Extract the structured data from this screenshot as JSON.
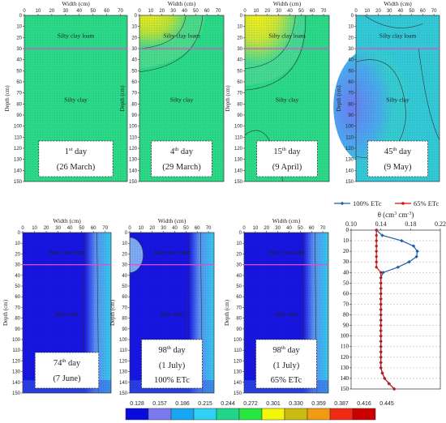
{
  "colors": {
    "scale": [
      "#0a0adc",
      "#7a7af0",
      "#19a6f0",
      "#2fd2f2",
      "#1fd68a",
      "#28e640",
      "#f5f50a",
      "#c9bb10",
      "#f29a12",
      "#ee2a12",
      "#cc0000"
    ],
    "series_100": "#1f5fa8",
    "series_65": "#c81414",
    "layer_line": "#e64bd2"
  },
  "labels": {
    "width_axis": "Width (cm)",
    "depth_axis": "Depth (cm)",
    "top_layer": "Silty clay loam",
    "bottom_layer": "Silty clay",
    "x_ticks": [
      "0",
      "10",
      "20",
      "30",
      "40",
      "50",
      "60",
      "70"
    ],
    "y_ticks": [
      "0",
      "10",
      "20",
      "30",
      "40",
      "50",
      "60",
      "70",
      "80",
      "90",
      "100",
      "110",
      "120",
      "130",
      "140",
      "150"
    ]
  },
  "panels": [
    {
      "id": "p1",
      "line1_num": "1",
      "line1_sup": "st",
      "line1_rest": " day",
      "line2": "(26 March)",
      "line3": ""
    },
    {
      "id": "p2",
      "line1_num": "4",
      "line1_sup": "th",
      "line1_rest": " day",
      "line2": "(29 March)",
      "line3": ""
    },
    {
      "id": "p3",
      "line1_num": "15",
      "line1_sup": "th",
      "line1_rest": " day",
      "line2": "(9 April)",
      "line3": ""
    },
    {
      "id": "p4",
      "line1_num": "45",
      "line1_sup": "th",
      "line1_rest": " day",
      "line2": "(9 May)",
      "line3": ""
    },
    {
      "id": "p5",
      "line1_num": "74",
      "line1_sup": "th",
      "line1_rest": " day",
      "line2": "(7 June)",
      "line3": ""
    },
    {
      "id": "p6",
      "line1_num": "98",
      "line1_sup": "th",
      "line1_rest": " day",
      "line2": "(1 July)",
      "line3": "100% ETc"
    },
    {
      "id": "p7",
      "line1_num": "98",
      "line1_sup": "th",
      "line1_rest": " day",
      "line2": "(1 July)",
      "line3": "65% ETc"
    }
  ],
  "colorbar": {
    "ticks": [
      "0.128",
      "0.157",
      "0.186",
      "0.215",
      "0.244",
      "0.272",
      "0.301",
      "0.330",
      "0.359",
      "0.387",
      "0.416",
      "0.445"
    ]
  },
  "chart_data": {
    "type": "line",
    "xlabel_main": "θ (cm",
    "xlabel_sup1": "3",
    "xlabel_mid": " cm",
    "xlabel_sup2": "-3",
    "xlabel_end": ")",
    "x_ticks": [
      "0.10",
      "0.14",
      "0.18",
      "0.22"
    ],
    "xlim": [
      0.1,
      0.22
    ],
    "ylim": [
      0,
      150
    ],
    "y_ticks": [
      "0",
      "10",
      "20",
      "30",
      "40",
      "50",
      "60",
      "70",
      "80",
      "90",
      "100",
      "110",
      "120",
      "130",
      "140",
      "150"
    ],
    "grid": "horizontal dashed",
    "legend": "top",
    "series": [
      {
        "name": "100% ETc",
        "points": [
          [
            0.134,
            0
          ],
          [
            0.142,
            5
          ],
          [
            0.168,
            10
          ],
          [
            0.184,
            15
          ],
          [
            0.189,
            20
          ],
          [
            0.188,
            25
          ],
          [
            0.178,
            30
          ],
          [
            0.163,
            35
          ],
          [
            0.143,
            40
          ],
          [
            0.14,
            45
          ],
          [
            0.14,
            50
          ],
          [
            0.14,
            55
          ],
          [
            0.14,
            60
          ],
          [
            0.14,
            65
          ],
          [
            0.14,
            70
          ],
          [
            0.14,
            75
          ],
          [
            0.14,
            80
          ],
          [
            0.14,
            85
          ],
          [
            0.14,
            90
          ],
          [
            0.14,
            95
          ],
          [
            0.14,
            100
          ],
          [
            0.14,
            105
          ],
          [
            0.14,
            110
          ],
          [
            0.14,
            115
          ],
          [
            0.14,
            120
          ],
          [
            0.14,
            125
          ],
          [
            0.14,
            130
          ],
          [
            0.142,
            135
          ],
          [
            0.145,
            140
          ],
          [
            0.151,
            145
          ],
          [
            0.158,
            150
          ]
        ]
      },
      {
        "name": "65% ETc",
        "points": [
          [
            0.134,
            0
          ],
          [
            0.134,
            5
          ],
          [
            0.134,
            10
          ],
          [
            0.134,
            15
          ],
          [
            0.134,
            20
          ],
          [
            0.134,
            25
          ],
          [
            0.134,
            30
          ],
          [
            0.134,
            35
          ],
          [
            0.14,
            40
          ],
          [
            0.14,
            45
          ],
          [
            0.14,
            50
          ],
          [
            0.14,
            55
          ],
          [
            0.14,
            60
          ],
          [
            0.14,
            65
          ],
          [
            0.14,
            70
          ],
          [
            0.14,
            75
          ],
          [
            0.14,
            80
          ],
          [
            0.14,
            85
          ],
          [
            0.14,
            90
          ],
          [
            0.14,
            95
          ],
          [
            0.14,
            100
          ],
          [
            0.14,
            105
          ],
          [
            0.14,
            110
          ],
          [
            0.14,
            115
          ],
          [
            0.14,
            120
          ],
          [
            0.14,
            125
          ],
          [
            0.14,
            130
          ],
          [
            0.142,
            135
          ],
          [
            0.145,
            140
          ],
          [
            0.151,
            145
          ],
          [
            0.158,
            150
          ]
        ]
      }
    ]
  }
}
